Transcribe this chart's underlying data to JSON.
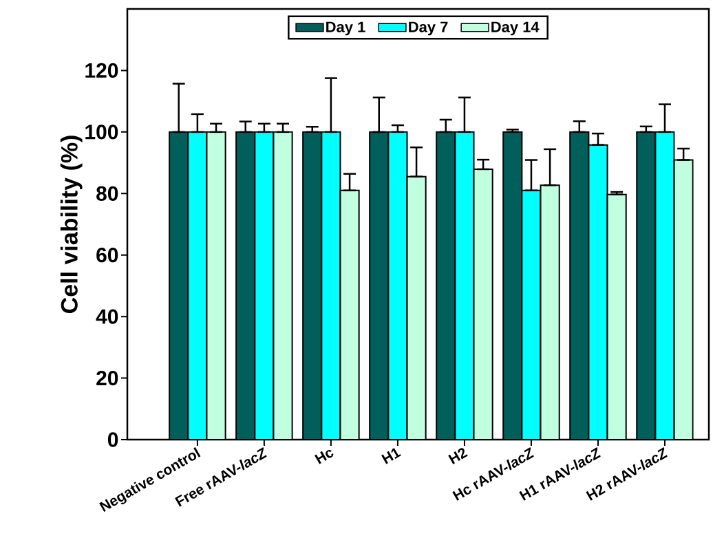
{
  "chart_data": {
    "type": "bar",
    "ylabel": "Cell viability (%)",
    "categories": [
      "Negative control",
      "Free rAAV-*lacZ*",
      "Hc",
      "H1",
      "H2",
      "Hc rAAV-*lacZ*",
      "H1 rAAV-*lacZ*",
      "H2 rAAV-*lacZ*"
    ],
    "series": [
      {
        "name": "Day 1",
        "color": "#005f5a",
        "values": [
          100,
          100,
          100,
          100,
          100,
          100,
          100,
          100
        ],
        "errors": [
          [
            100,
            115.7
          ],
          [
            100,
            103.4
          ],
          [
            100,
            101.7
          ],
          [
            100,
            111.2
          ],
          [
            100,
            104.0
          ],
          [
            100,
            100.8
          ],
          [
            100,
            103.5
          ],
          [
            100,
            101.8
          ]
        ]
      },
      {
        "name": "Day 7",
        "color": "#00ffff",
        "values": [
          100,
          100,
          100,
          100,
          100,
          81,
          95.8,
          100
        ],
        "errors": [
          [
            100,
            105.8
          ],
          [
            100,
            102.7
          ],
          [
            100,
            117.5
          ],
          [
            100,
            102.2
          ],
          [
            100,
            111.2
          ],
          [
            81,
            90.9
          ],
          [
            95.8,
            99.5
          ],
          [
            100,
            109.0
          ]
        ]
      },
      {
        "name": "Day 14",
        "color": "#c0ffe0",
        "values": [
          100,
          100,
          81,
          85.5,
          87.9,
          82.7,
          79.7,
          90.9
        ],
        "errors": [
          [
            100,
            102.7
          ],
          [
            100,
            102.7
          ],
          [
            81,
            86.4
          ],
          [
            85.5,
            95.0
          ],
          [
            87.9,
            91.0
          ],
          [
            82.7,
            94.4
          ],
          [
            79.7,
            80.5
          ],
          [
            90.9,
            94.6
          ]
        ]
      }
    ],
    "ylim": [
      0,
      140
    ],
    "yticks": [
      0,
      20,
      40,
      60,
      80,
      100,
      120
    ],
    "legend": "top",
    "grid": false
  }
}
